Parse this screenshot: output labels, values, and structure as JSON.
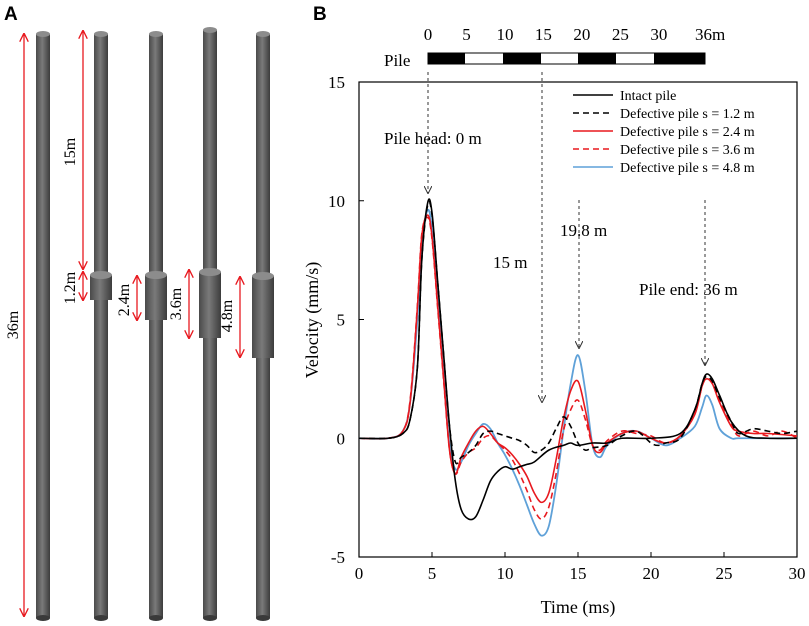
{
  "panels": {
    "a": "A",
    "b": "B"
  },
  "panel_a": {
    "total_length_label": "36m",
    "defect_depth_label": "15m",
    "defect_lengths": [
      "1.2m",
      "2.4m",
      "3.6m",
      "4.8m"
    ],
    "colors": {
      "pile": "#707070",
      "dimension": "#e8191f"
    }
  },
  "scale_bar": {
    "label": "Pile",
    "ticks": [
      "0",
      "5",
      "10",
      "15",
      "20",
      "25",
      "30",
      "36m"
    ],
    "tick_values": [
      0,
      5,
      10,
      15,
      20,
      25,
      30,
      36
    ]
  },
  "annotations": {
    "pile_head": "Pile head: 0 m",
    "m15": "15 m",
    "m19_8": "19.8 m",
    "pile_end": "Pile end: 36 m"
  },
  "chart_data": {
    "type": "line",
    "xlabel": "Time (ms)",
    "ylabel": "Velocity (mm/s)",
    "xlim": [
      0,
      30
    ],
    "ylim": [
      -5,
      15
    ],
    "xticks": [
      0,
      5,
      10,
      15,
      20,
      25,
      30
    ],
    "yticks": [
      -5,
      0,
      5,
      10,
      15
    ],
    "legend_position": "top-right",
    "series": [
      {
        "name": "Intact pile",
        "color": "#000000",
        "dash": "solid",
        "x": [
          0,
          2,
          3,
          3.5,
          4,
          4.3,
          4.7,
          5,
          5.4,
          5.8,
          6.2,
          6.6,
          7,
          7.5,
          8,
          8.5,
          9,
          9.5,
          10,
          10.5,
          11,
          11.5,
          12,
          13,
          14,
          14.5,
          15,
          16,
          17,
          18,
          20,
          22,
          23,
          23.5,
          23.8,
          24.2,
          24.7,
          25.5,
          26.5,
          28,
          30
        ],
        "y": [
          0,
          0,
          0.2,
          0.8,
          3,
          7.5,
          9.9,
          9.5,
          6.5,
          3.5,
          0.5,
          -1.8,
          -3.0,
          -3.4,
          -3.3,
          -2.6,
          -1.8,
          -1.4,
          -1.2,
          -1.3,
          -1.2,
          -1.1,
          -1.0,
          -0.5,
          -0.3,
          -0.2,
          -0.3,
          -0.2,
          -0.2,
          0,
          0,
          0.2,
          1.2,
          2.3,
          2.7,
          2.5,
          1.8,
          0.7,
          0.1,
          0,
          0
        ]
      },
      {
        "name": "Defective pile s = 1.2 m",
        "color": "#000000",
        "dash": "dashed",
        "x": [
          0,
          2,
          3,
          3.5,
          4,
          4.3,
          4.7,
          5,
          5.4,
          5.8,
          6.2,
          6.6,
          7,
          7.5,
          8,
          8.5,
          9,
          9.5,
          10,
          10.5,
          11,
          11.5,
          12,
          12.5,
          13,
          13.5,
          14,
          14.5,
          15,
          15.5,
          16,
          17,
          18,
          19,
          20,
          20.5,
          21,
          22,
          23,
          23.5,
          23.8,
          24.2,
          24.7,
          25.5,
          26,
          27,
          28,
          29,
          30
        ],
        "y": [
          0,
          0,
          0.2,
          0.8,
          3,
          7.5,
          9.8,
          9.4,
          6.5,
          3.5,
          0.5,
          -1.0,
          -0.8,
          -0.6,
          -0.3,
          0.2,
          0.3,
          0.2,
          0.1,
          0,
          -0.1,
          -0.3,
          -0.6,
          -0.5,
          -0.2,
          0.4,
          0.9,
          0.5,
          -0.2,
          -0.5,
          -0.4,
          -0.3,
          0.1,
          0.3,
          -0.2,
          -0.3,
          -0.2,
          0,
          1.2,
          2.3,
          2.6,
          2.4,
          1.7,
          0.7,
          0.2,
          0.4,
          0.3,
          0.2,
          0.3
        ]
      },
      {
        "name": "Defective pile s = 2.4 m",
        "color": "#e8191f",
        "dash": "solid",
        "x": [
          0,
          2,
          3,
          3.5,
          4,
          4.3,
          4.7,
          5,
          5.4,
          5.8,
          6.2,
          6.6,
          7,
          7.5,
          8,
          8.5,
          9,
          9.5,
          10,
          10.5,
          11,
          11.5,
          12,
          12.5,
          13,
          13.5,
          14,
          14.5,
          15,
          15.5,
          16,
          16.5,
          17,
          18,
          19,
          20,
          21,
          22,
          23,
          23.5,
          23.8,
          24.2,
          24.7,
          25.5,
          26,
          27,
          28,
          30
        ],
        "y": [
          0,
          0,
          0.3,
          1.5,
          5.5,
          8.5,
          9.4,
          8.5,
          5.5,
          2.5,
          -0.5,
          -1.5,
          -0.8,
          -0.2,
          0.3,
          0.5,
          0.2,
          -0.2,
          -0.4,
          -0.7,
          -1.1,
          -1.6,
          -2.3,
          -2.7,
          -2.3,
          -0.9,
          0.8,
          2.0,
          2.4,
          1.2,
          -0.3,
          -0.6,
          -0.2,
          0.2,
          0.3,
          0,
          -0.2,
          0.1,
          1.0,
          2.2,
          2.5,
          2.3,
          1.5,
          0.5,
          0.3,
          0.2,
          0.2,
          0.1
        ]
      },
      {
        "name": "Defective pile s = 3.6 m",
        "color": "#e8191f",
        "dash": "dashed",
        "x": [
          0,
          2,
          3,
          3.5,
          4,
          4.3,
          4.7,
          5,
          5.4,
          5.8,
          6.2,
          6.6,
          7,
          7.5,
          8,
          8.5,
          9,
          9.5,
          10,
          10.5,
          11,
          11.5,
          12,
          12.5,
          13,
          13.5,
          14,
          14.5,
          15,
          15.5,
          16,
          16.5,
          17,
          18,
          19,
          20,
          21,
          22,
          23,
          23.5,
          23.8,
          24.2,
          24.7,
          25.5,
          26,
          27,
          28,
          29,
          30
        ],
        "y": [
          0,
          0,
          0.3,
          1.6,
          5.6,
          8.6,
          9.3,
          8.4,
          5.4,
          2.4,
          -0.5,
          -1.5,
          -1.0,
          -0.6,
          -0.4,
          0,
          0.1,
          -0.2,
          -0.5,
          -0.9,
          -1.5,
          -2.2,
          -3.0,
          -3.4,
          -2.9,
          -1.5,
          0.3,
          1.2,
          1.6,
          0.8,
          -0.3,
          -0.5,
          -0.1,
          0.3,
          0.2,
          0.1,
          -0.2,
          0.1,
          1.1,
          2.2,
          2.5,
          2.3,
          1.6,
          0.6,
          0.1,
          0.3,
          0.1,
          0.3,
          0
        ]
      },
      {
        "name": "Defective pile s = 4.8 m",
        "color": "#5fa1d8",
        "dash": "solid",
        "x": [
          0,
          2,
          3,
          3.5,
          4,
          4.3,
          4.7,
          5,
          5.4,
          5.8,
          6.2,
          6.6,
          7,
          7.5,
          8,
          8.5,
          9,
          9.5,
          10,
          10.5,
          11,
          11.5,
          12,
          12.5,
          13,
          13.5,
          14,
          14.5,
          15,
          15.5,
          16,
          16.5,
          17,
          18,
          19,
          20,
          21,
          22,
          23,
          23.5,
          23.8,
          24.2,
          24.7,
          25.5,
          26,
          28,
          30
        ],
        "y": [
          0,
          0,
          0.3,
          1.5,
          5.0,
          8.2,
          9.6,
          8.8,
          5.8,
          2.6,
          -0.3,
          -1.3,
          -1.0,
          -0.3,
          0.2,
          0.6,
          0.4,
          -0.2,
          -0.7,
          -1.3,
          -2.0,
          -2.8,
          -3.6,
          -4.1,
          -3.7,
          -2.0,
          0.3,
          2.3,
          3.5,
          2.0,
          -0.3,
          -0.8,
          -0.3,
          0.2,
          0.3,
          0,
          -0.3,
          0,
          0.5,
          1.3,
          1.8,
          1.4,
          0.4,
          0,
          0,
          0,
          0
        ]
      }
    ]
  }
}
